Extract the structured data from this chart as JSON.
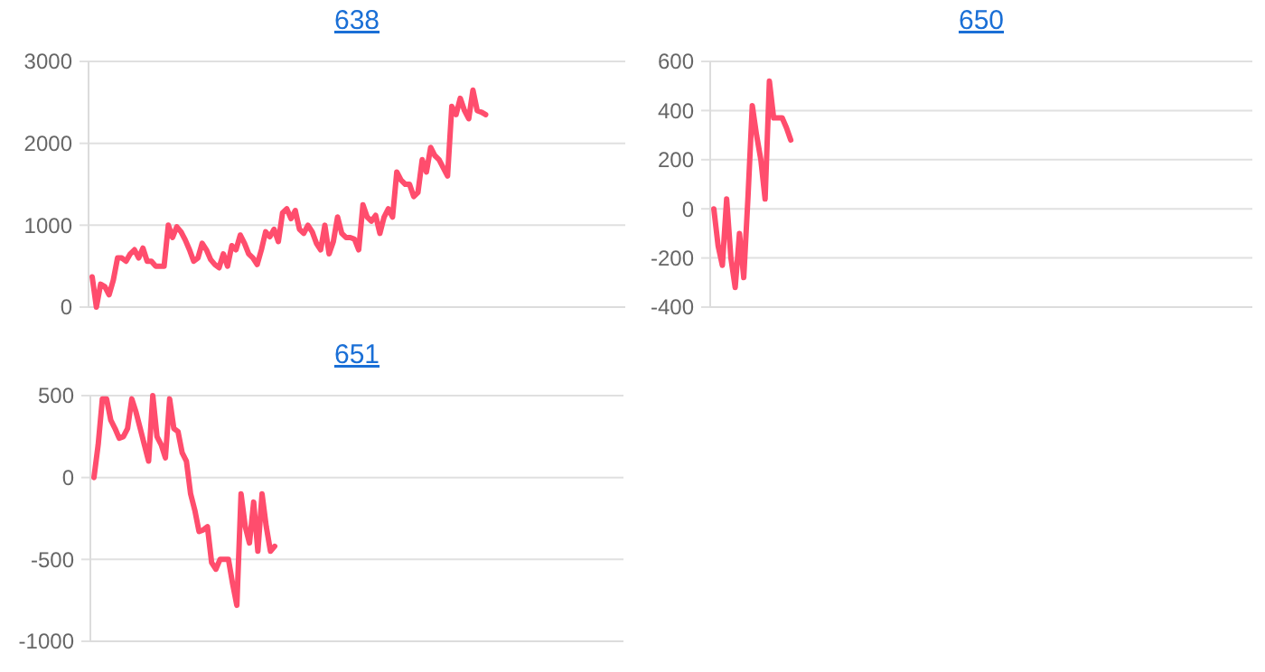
{
  "chart_data": [
    {
      "type": "line",
      "title": "638",
      "tick_labels": "y",
      "grid": "y",
      "line_style": "solid",
      "ylim": [
        0,
        3000
      ],
      "yticks": [
        0,
        1000,
        2000,
        3000
      ],
      "categories": [
        null,
        null,
        null,
        null,
        null,
        null,
        null,
        null,
        null,
        null,
        null,
        null,
        null,
        null,
        null,
        null,
        null,
        null,
        null,
        null,
        null,
        null,
        null,
        null,
        null,
        null,
        null,
        null,
        null,
        null,
        null,
        null,
        null,
        null,
        null,
        null,
        null,
        null,
        null,
        null,
        null,
        null,
        null,
        null,
        null,
        null,
        null,
        null,
        null,
        null,
        null,
        null,
        null,
        null,
        null,
        null,
        null,
        null,
        null,
        null,
        null,
        null,
        null,
        null,
        null,
        null,
        null,
        null,
        null,
        null,
        null,
        null,
        null,
        null,
        null,
        null,
        null,
        null,
        null,
        null,
        null,
        null,
        null,
        null,
        null,
        null,
        null,
        null,
        null,
        null,
        null,
        null,
        null,
        null,
        null,
        null,
        null,
        null,
        null,
        null,
        null,
        null,
        null,
        null,
        null,
        null,
        null,
        null,
        null,
        null,
        null,
        null,
        null,
        null,
        null,
        null,
        null,
        null,
        null,
        null,
        null,
        null,
        null,
        null,
        null,
        null,
        null
      ],
      "series": [
        {
          "color": "#ff4d6d",
          "values": [
            370,
            0,
            280,
            250,
            150,
            330,
            600,
            600,
            560,
            650,
            700,
            600,
            720,
            560,
            560,
            500,
            500,
            500,
            1000,
            850,
            980,
            920,
            820,
            700,
            560,
            600,
            780,
            700,
            580,
            520,
            480,
            650,
            500,
            750,
            700,
            880,
            780,
            650,
            600,
            520,
            700,
            920,
            860,
            950,
            800,
            1150,
            1200,
            1080,
            1180,
            950,
            900,
            1000,
            920,
            780,
            700,
            1000,
            650,
            800,
            1100,
            900,
            850,
            850,
            830,
            700,
            1250,
            1100,
            1050,
            1120,
            900,
            1100,
            1200,
            1100,
            1650,
            1550,
            1500,
            1500,
            1350,
            1400,
            1800,
            1650,
            1950,
            1850,
            1800,
            1700,
            1600,
            2450,
            2350,
            2550,
            2400,
            2300,
            2650,
            2400,
            2380,
            2350,
            null,
            null,
            null,
            null,
            null,
            null,
            null,
            null,
            null,
            null,
            null,
            null,
            null,
            null,
            null,
            null,
            null,
            null,
            null,
            null,
            null,
            null,
            null,
            null,
            null,
            null,
            null,
            null,
            null,
            null,
            null,
            null,
            null
          ]
        }
      ]
    },
    {
      "type": "line",
      "title": "650",
      "tick_labels": "y",
      "grid": "y",
      "line_style": "solid",
      "ylim": [
        -400,
        600
      ],
      "yticks": [
        -400,
        -200,
        0,
        200,
        400,
        600
      ],
      "categories": [
        null,
        null,
        null,
        null,
        null,
        null,
        null,
        null,
        null,
        null,
        null,
        null,
        null,
        null,
        null,
        null,
        null,
        null,
        null,
        null,
        null,
        null,
        null,
        null,
        null,
        null,
        null,
        null,
        null,
        null,
        null,
        null,
        null,
        null,
        null,
        null,
        null,
        null,
        null,
        null,
        null,
        null,
        null,
        null,
        null,
        null,
        null,
        null,
        null,
        null,
        null,
        null,
        null,
        null,
        null,
        null,
        null,
        null,
        null,
        null,
        null,
        null,
        null,
        null,
        null,
        null,
        null,
        null,
        null,
        null,
        null,
        null,
        null,
        null,
        null,
        null,
        null,
        null,
        null,
        null,
        null,
        null,
        null,
        null,
        null,
        null,
        null,
        null,
        null,
        null,
        null,
        null,
        null,
        null,
        null,
        null,
        null,
        null,
        null,
        null,
        null,
        null,
        null,
        null,
        null,
        null,
        null,
        null,
        null,
        null,
        null,
        null,
        null,
        null,
        null,
        null,
        null,
        null,
        null,
        null,
        null,
        null,
        null,
        null,
        null,
        null,
        null
      ],
      "series": [
        {
          "color": "#ff4d6d",
          "values": [
            0,
            -150,
            -230,
            40,
            -200,
            -320,
            -100,
            -280,
            50,
            420,
            300,
            200,
            40,
            520,
            370,
            370,
            370,
            330,
            280,
            null,
            null,
            null,
            null,
            null,
            null,
            null,
            null,
            null,
            null,
            null,
            null,
            null,
            null,
            null,
            null,
            null,
            null,
            null,
            null,
            null,
            null,
            null,
            null,
            null,
            null,
            null,
            null,
            null,
            null,
            null,
            null,
            null,
            null,
            null,
            null,
            null,
            null,
            null,
            null,
            null,
            null,
            null,
            null,
            null,
            null,
            null,
            null,
            null,
            null,
            null,
            null,
            null,
            null,
            null,
            null,
            null,
            null,
            null,
            null,
            null,
            null,
            null,
            null,
            null,
            null,
            null,
            null,
            null,
            null,
            null,
            null,
            null,
            null,
            null,
            null,
            null,
            null,
            null,
            null,
            null,
            null,
            null,
            null,
            null,
            null,
            null,
            null,
            null,
            null,
            null,
            null,
            null,
            null,
            null,
            null,
            null,
            null,
            null,
            null,
            null,
            null,
            null,
            null,
            null,
            null,
            null,
            null
          ]
        }
      ]
    },
    {
      "type": "line",
      "title": "651",
      "tick_labels": "y",
      "grid": "y",
      "line_style": "solid",
      "ylim": [
        -1000,
        500
      ],
      "yticks": [
        -1000,
        -500,
        0,
        500
      ],
      "categories": [
        null,
        null,
        null,
        null,
        null,
        null,
        null,
        null,
        null,
        null,
        null,
        null,
        null,
        null,
        null,
        null,
        null,
        null,
        null,
        null,
        null,
        null,
        null,
        null,
        null,
        null,
        null,
        null,
        null,
        null,
        null,
        null,
        null,
        null,
        null,
        null,
        null,
        null,
        null,
        null,
        null,
        null,
        null,
        null,
        null,
        null,
        null,
        null,
        null,
        null,
        null,
        null,
        null,
        null,
        null,
        null,
        null,
        null,
        null,
        null,
        null,
        null,
        null,
        null,
        null,
        null,
        null,
        null,
        null,
        null,
        null,
        null,
        null,
        null,
        null,
        null,
        null,
        null,
        null,
        null,
        null,
        null,
        null,
        null,
        null,
        null,
        null,
        null,
        null,
        null,
        null,
        null,
        null,
        null,
        null,
        null,
        null,
        null,
        null,
        null,
        null,
        null,
        null,
        null,
        null,
        null,
        null,
        null,
        null,
        null,
        null,
        null,
        null,
        null,
        null,
        null,
        null,
        null,
        null,
        null,
        null,
        null,
        null,
        null,
        null,
        null,
        null
      ],
      "series": [
        {
          "color": "#ff4d6d",
          "values": [
            0,
            200,
            480,
            480,
            350,
            300,
            240,
            250,
            300,
            480,
            400,
            300,
            200,
            100,
            500,
            250,
            200,
            120,
            480,
            300,
            280,
            150,
            100,
            -100,
            -200,
            -330,
            -320,
            -300,
            -520,
            -560,
            -500,
            -500,
            -500,
            -650,
            -780,
            -100,
            -300,
            -400,
            -150,
            -450,
            -100,
            -300,
            -450,
            -420,
            null,
            null,
            null,
            null,
            null,
            null,
            null,
            null,
            null,
            null,
            null,
            null,
            null,
            null,
            null,
            null,
            null,
            null,
            null,
            null,
            null,
            null,
            null,
            null,
            null,
            null,
            null,
            null,
            null,
            null,
            null,
            null,
            null,
            null,
            null,
            null,
            null,
            null,
            null,
            null,
            null,
            null,
            null,
            null,
            null,
            null,
            null,
            null,
            null,
            null,
            null,
            null,
            null,
            null,
            null,
            null,
            null,
            null,
            null,
            null,
            null,
            null,
            null,
            null,
            null,
            null,
            null,
            null,
            null,
            null,
            null,
            null,
            null,
            null,
            null,
            null,
            null,
            null,
            null,
            null,
            null,
            null,
            null
          ]
        }
      ]
    }
  ]
}
